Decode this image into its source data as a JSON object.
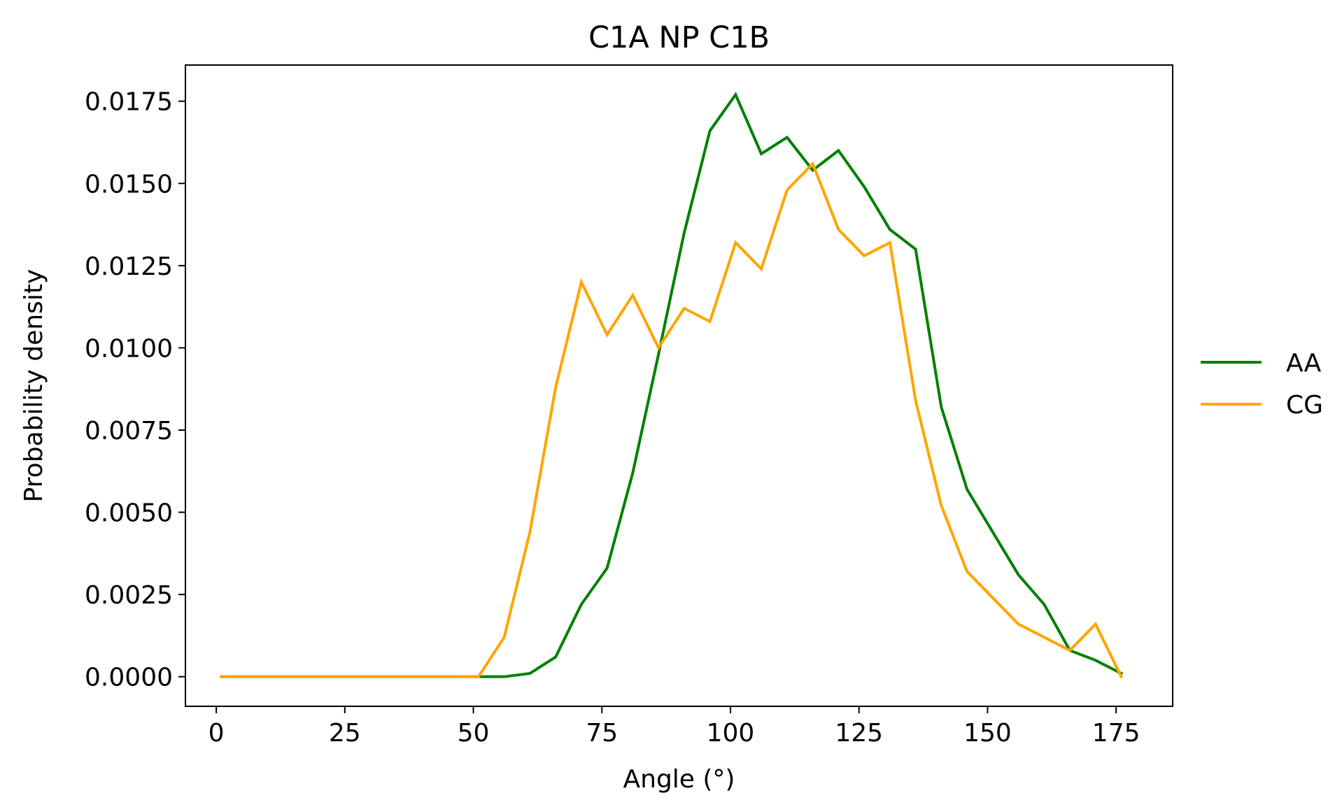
{
  "chart_data": {
    "type": "line",
    "title": "C1A NP C1B",
    "xlabel": "Angle (°)",
    "ylabel": "Probability density",
    "xlim": [
      -6,
      186
    ],
    "ylim": [
      -0.0009,
      0.0186
    ],
    "xticks": [
      0,
      25,
      50,
      75,
      100,
      125,
      150,
      175
    ],
    "xtick_labels": [
      "0",
      "25",
      "50",
      "75",
      "100",
      "125",
      "150",
      "175"
    ],
    "yticks": [
      0,
      0.0025,
      0.005,
      0.0075,
      0.01,
      0.0125,
      0.015,
      0.0175
    ],
    "ytick_labels": [
      "0.0000",
      "0.0025",
      "0.0050",
      "0.0075",
      "0.0100",
      "0.0125",
      "0.0150",
      "0.0175"
    ],
    "grid": false,
    "legend_position": "right-outside",
    "series": [
      {
        "name": "AA",
        "color": "#008000",
        "x": [
          1,
          6,
          11,
          16,
          21,
          26,
          31,
          36,
          41,
          46,
          51,
          56,
          61,
          66,
          71,
          76,
          81,
          86,
          91,
          96,
          101,
          106,
          111,
          116,
          121,
          126,
          131,
          136,
          141,
          146,
          151,
          156,
          161,
          166,
          171,
          176
        ],
        "y": [
          0.0,
          0.0,
          0.0,
          0.0,
          0.0,
          0.0,
          0.0,
          0.0,
          0.0,
          0.0,
          0.0,
          0.0,
          0.0001,
          0.0006,
          0.0022,
          0.0033,
          0.0062,
          0.0098,
          0.0135,
          0.0166,
          0.0177,
          0.0159,
          0.0164,
          0.0154,
          0.016,
          0.0149,
          0.0136,
          0.013,
          0.0082,
          0.0057,
          0.0044,
          0.0031,
          0.0022,
          0.0008,
          0.0005,
          0.0001
        ]
      },
      {
        "name": "CG",
        "color": "#FFA500",
        "x": [
          1,
          6,
          11,
          16,
          21,
          26,
          31,
          36,
          41,
          46,
          51,
          56,
          61,
          66,
          71,
          76,
          81,
          86,
          91,
          96,
          101,
          106,
          111,
          116,
          121,
          126,
          131,
          136,
          141,
          146,
          151,
          156,
          161,
          166,
          171,
          176
        ],
        "y": [
          0.0,
          0.0,
          0.0,
          0.0,
          0.0,
          0.0,
          0.0,
          0.0,
          0.0,
          0.0,
          0.0,
          0.0012,
          0.0044,
          0.0088,
          0.012,
          0.0104,
          0.0116,
          0.01,
          0.0112,
          0.0108,
          0.0132,
          0.0124,
          0.0148,
          0.0156,
          0.0136,
          0.0128,
          0.0132,
          0.0084,
          0.0052,
          0.0032,
          0.0024,
          0.0016,
          0.0012,
          0.0008,
          0.0016,
          0.0
        ]
      }
    ]
  }
}
